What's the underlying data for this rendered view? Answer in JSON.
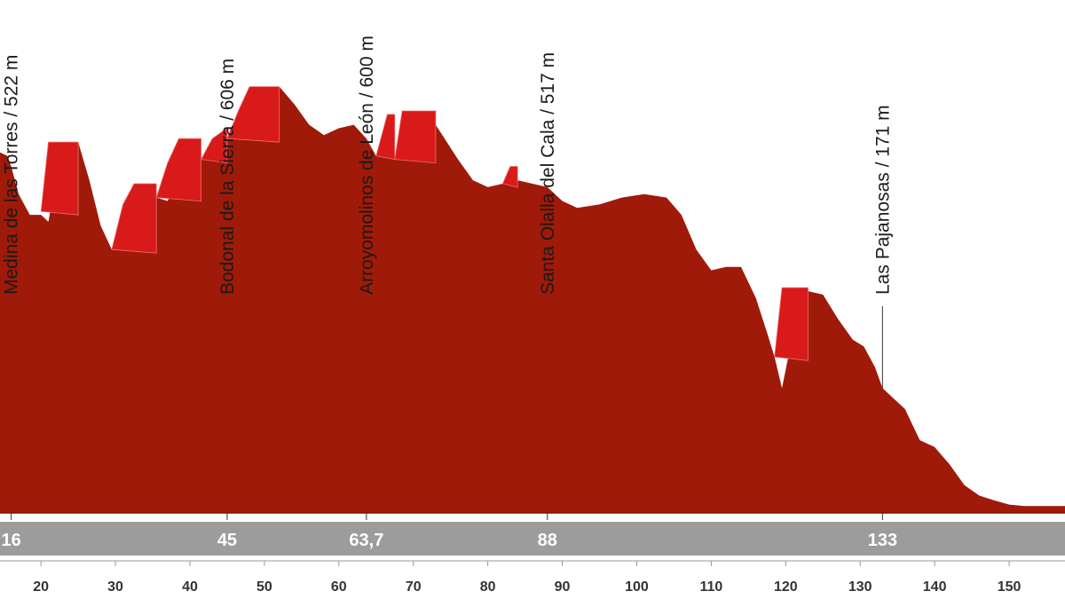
{
  "chart_data": {
    "type": "area",
    "title": "",
    "xlabel": "",
    "ylabel": "",
    "xlim": [
      14.5,
      157.5
    ],
    "ylim": [
      0,
      740
    ],
    "x_ticks": [
      20,
      30,
      40,
      50,
      60,
      70,
      80,
      90,
      100,
      110,
      120,
      130,
      140,
      150
    ],
    "waypoints": [
      {
        "name": "Medina de las Torres",
        "elevation": "522 m",
        "km": 16,
        "km_label": "16"
      },
      {
        "name": "Bodonal de la Sierra",
        "elevation": "606 m",
        "km": 45,
        "km_label": "45"
      },
      {
        "name": "Arroyomolinos de León",
        "elevation": "600 m",
        "km": 63.7,
        "km_label": "63,7"
      },
      {
        "name": "Santa Olalla del Cala",
        "elevation": "517 m",
        "km": 88,
        "km_label": "88"
      },
      {
        "name": "Las Pajanosas",
        "elevation": "171 m",
        "km": 133,
        "km_label": "133"
      }
    ],
    "profile": {
      "x": [
        14.5,
        15.5,
        16,
        17,
        18.5,
        20,
        21,
        22,
        23.5,
        25,
        26.5,
        28,
        29.5,
        31,
        32.5,
        34,
        35.5,
        37,
        38.5,
        40,
        41.5,
        43,
        45,
        46.5,
        48,
        50,
        52,
        54,
        56,
        58,
        60,
        62,
        63.7,
        65,
        66.5,
        67.5,
        68.5,
        70,
        71.5,
        73,
        74.5,
        76,
        78,
        80,
        82,
        84,
        86,
        88,
        90,
        92,
        95,
        98,
        101,
        104,
        106,
        108,
        110,
        112,
        114,
        116,
        117.5,
        118.5,
        119.5,
        121,
        123,
        125,
        127,
        129,
        130.5,
        132,
        133,
        134,
        136,
        138,
        140,
        142,
        144,
        146,
        148,
        150,
        152,
        154,
        156,
        157.5
      ],
      "y": [
        520,
        515,
        500,
        460,
        430,
        430,
        420,
        480,
        525,
        535,
        480,
        415,
        380,
        385,
        395,
        430,
        455,
        450,
        480,
        500,
        510,
        520,
        540,
        570,
        595,
        615,
        615,
        590,
        560,
        545,
        555,
        560,
        540,
        515,
        515,
        510,
        560,
        555,
        555,
        560,
        535,
        510,
        480,
        470,
        475,
        480,
        475,
        470,
        450,
        440,
        445,
        455,
        460,
        455,
        430,
        380,
        350,
        355,
        355,
        310,
        260,
        225,
        180,
        260,
        320,
        315,
        280,
        250,
        240,
        210,
        180,
        170,
        150,
        105,
        95,
        70,
        40,
        25,
        18,
        12,
        10,
        10,
        10,
        10
      ]
    },
    "climbs": [
      {
        "x": [
          20,
          21,
          22,
          23.5,
          25
        ],
        "y": [
          435,
          535,
          535,
          535,
          535
        ]
      },
      {
        "x": [
          29.5,
          31,
          32.5,
          34,
          35.5
        ],
        "y": [
          380,
          445,
          475,
          475,
          475
        ]
      },
      {
        "x": [
          35.5,
          37,
          38.5,
          40,
          41.5
        ],
        "y": [
          455,
          505,
          540,
          540,
          540
        ]
      },
      {
        "x": [
          41.5,
          43,
          45
        ],
        "y": [
          510,
          540,
          555
        ]
      },
      {
        "x": [
          45,
          46.5,
          48,
          50,
          52
        ],
        "y": [
          540,
          580,
          615,
          615,
          615
        ]
      },
      {
        "x": [
          65,
          66.5,
          67.5
        ],
        "y": [
          515,
          575,
          575
        ]
      },
      {
        "x": [
          67.5,
          68.5,
          70,
          71.5,
          73
        ],
        "y": [
          510,
          580,
          580,
          580,
          580
        ]
      },
      {
        "x": [
          82,
          83,
          84
        ],
        "y": [
          475,
          500,
          500
        ]
      },
      {
        "x": [
          118.5,
          119.5,
          121,
          123
        ],
        "y": [
          225,
          325,
          325,
          325
        ]
      }
    ],
    "colors": {
      "profile_fill": "#a01a09",
      "climb_fill": "#d81a1a",
      "distance_band": "#9c9c9c",
      "lines": "#555555"
    }
  }
}
